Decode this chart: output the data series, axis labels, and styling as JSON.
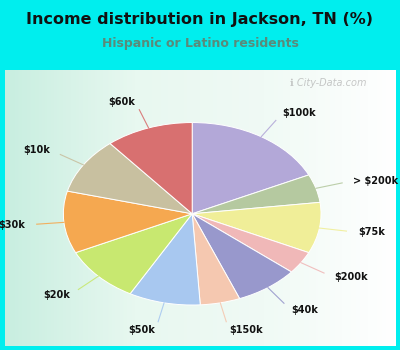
{
  "title": "Income distribution in Jackson, TN (%)",
  "subtitle": "Hispanic or Latino residents",
  "background_outer": "#00EEEE",
  "labels": [
    "$100k",
    "> $200k",
    "$75k",
    "$200k",
    "$40k",
    "$150k",
    "$50k",
    "$20k",
    "$30k",
    "$10k",
    "$60k"
  ],
  "sizes": [
    18,
    5,
    9,
    4,
    8,
    5,
    9,
    10,
    11,
    10,
    11
  ],
  "colors": [
    "#b3a8d8",
    "#b5c9a0",
    "#f0ee98",
    "#f0b8b8",
    "#9898cc",
    "#f5c8b0",
    "#a8c8f0",
    "#c8e870",
    "#f5a850",
    "#c8c0a0",
    "#d87070"
  ],
  "figsize": [
    4.0,
    3.5
  ],
  "dpi": 100,
  "title_fontsize": 11.5,
  "subtitle_fontsize": 9,
  "label_fontsize": 7,
  "subtitle_color": "#5a8a7a",
  "title_color": "#111111"
}
